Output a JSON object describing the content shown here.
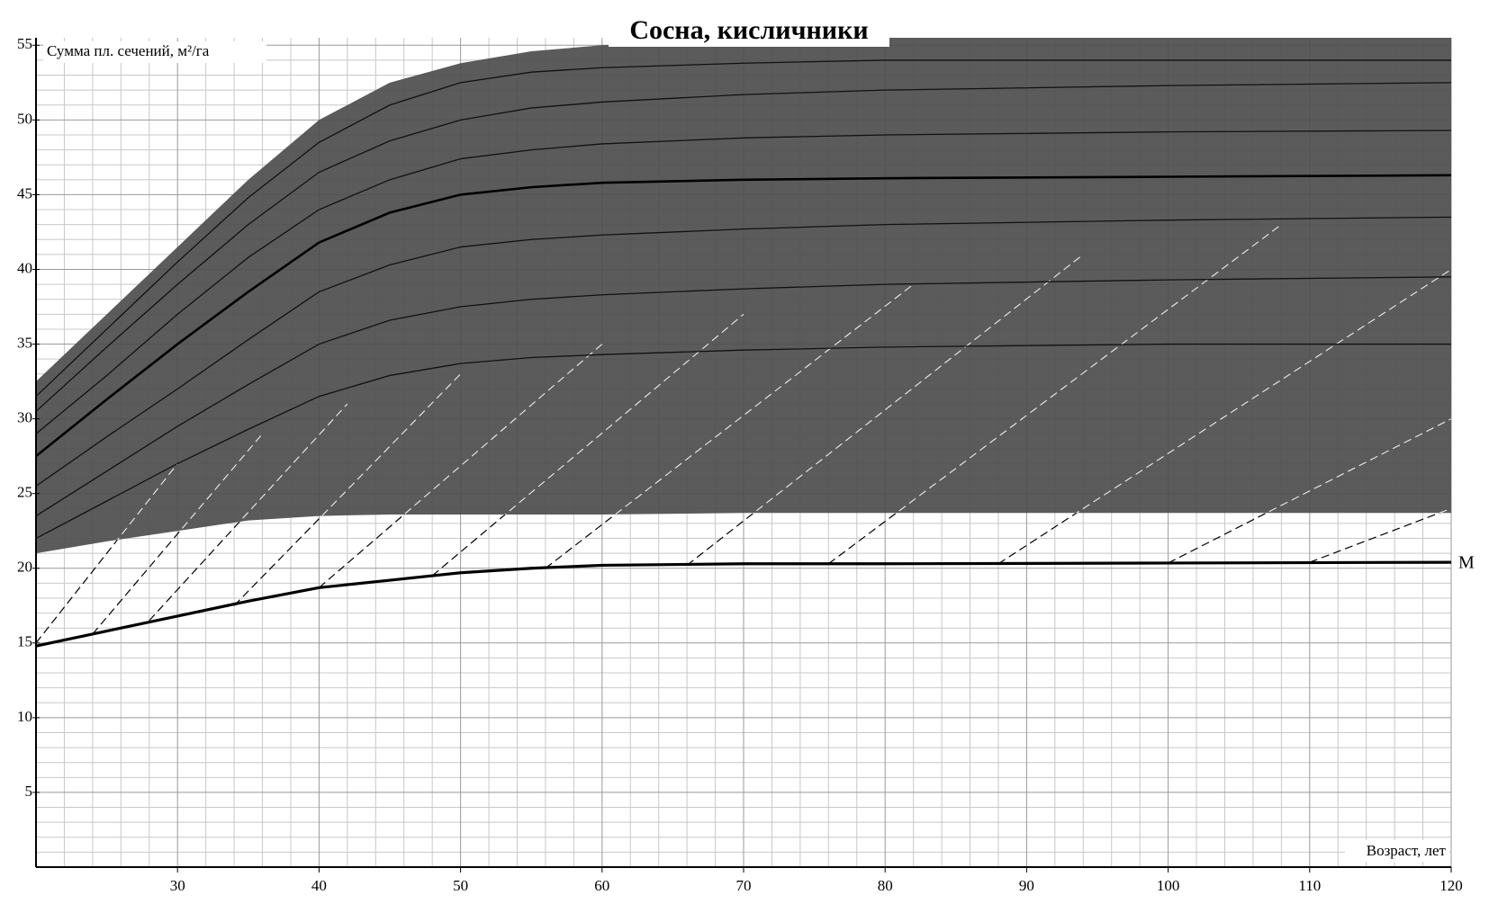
{
  "chart_data": {
    "type": "line",
    "title": "Сосна, кисличники",
    "ylabel": "Сумма пл. сечений, м²/га",
    "xlabel": "Возраст, лет",
    "xlim": [
      20,
      120
    ],
    "ylim": [
      0,
      55.5
    ],
    "xticks": [
      30,
      40,
      50,
      60,
      70,
      80,
      90,
      100,
      110,
      120
    ],
    "yticks": [
      5,
      10,
      15,
      20,
      25,
      30,
      35,
      40,
      45,
      50,
      55
    ],
    "xminorticks": [
      22,
      24,
      26,
      28,
      32,
      34,
      36,
      38,
      42,
      44,
      46,
      48,
      52,
      54,
      56,
      58,
      62,
      64,
      66,
      68,
      72,
      74,
      76,
      78,
      82,
      84,
      86,
      88,
      92,
      94,
      96,
      98,
      102,
      104,
      106,
      108,
      112,
      114,
      116,
      118
    ],
    "yminorticks": [
      1,
      2,
      3,
      4,
      6,
      7,
      8,
      9,
      11,
      12,
      13,
      14,
      16,
      17,
      18,
      19,
      21,
      22,
      23,
      24,
      26,
      27,
      28,
      29,
      31,
      32,
      33,
      34,
      36,
      37,
      38,
      39,
      41,
      42,
      43,
      44,
      46,
      47,
      48,
      49,
      51,
      52,
      53,
      54
    ],
    "grid": true,
    "x": [
      20,
      25,
      30,
      35,
      40,
      45,
      50,
      55,
      60,
      70,
      80,
      100,
      120
    ],
    "area": {
      "color": "#4d4d4d",
      "upper": [
        32.5,
        37,
        41.5,
        46,
        50,
        52.5,
        53.8,
        54.6,
        55,
        55.3,
        55.5,
        55.5,
        55.5
      ],
      "lower": [
        21,
        21.8,
        22.5,
        23.2,
        23.5,
        23.6,
        23.6,
        23.6,
        23.6,
        23.7,
        23.7,
        23.7,
        23.7
      ]
    },
    "series": [
      {
        "color": "#111111",
        "width": 1.3,
        "values": [
          31.5,
          36,
          40.5,
          44.8,
          48.5,
          51,
          52.5,
          53.2,
          53.5,
          53.8,
          54,
          54,
          54
        ]
      },
      {
        "color": "#111111",
        "width": 1.3,
        "values": [
          30.5,
          34.8,
          39,
          43,
          46.5,
          48.6,
          50,
          50.8,
          51.2,
          51.7,
          52,
          52.3,
          52.5
        ]
      },
      {
        "color": "#111111",
        "width": 1.3,
        "values": [
          29,
          32.9,
          37,
          40.8,
          44,
          46,
          47.4,
          48,
          48.4,
          48.8,
          49,
          49.2,
          49.3
        ]
      },
      {
        "color": "#000000",
        "width": 2.6,
        "values": [
          27.5,
          31.3,
          35,
          38.5,
          41.8,
          43.8,
          45,
          45.5,
          45.8,
          46,
          46.1,
          46.2,
          46.3
        ]
      },
      {
        "color": "#111111",
        "width": 1.3,
        "values": [
          25.5,
          28.8,
          32,
          35.3,
          38.5,
          40.3,
          41.5,
          42,
          42.3,
          42.7,
          43,
          43.3,
          43.5
        ]
      },
      {
        "color": "#111111",
        "width": 1.3,
        "values": [
          23.5,
          26.5,
          29.5,
          32.3,
          35,
          36.6,
          37.5,
          38,
          38.3,
          38.7,
          39,
          39.3,
          39.5
        ]
      },
      {
        "color": "#111111",
        "width": 1.3,
        "values": [
          22,
          24.5,
          27,
          29.3,
          31.5,
          32.9,
          33.7,
          34.1,
          34.3,
          34.6,
          34.8,
          35,
          35
        ]
      },
      {
        "name": "М",
        "color": "#000000",
        "width": 3.2,
        "values": [
          14.8,
          15.8,
          16.8,
          17.8,
          18.7,
          19.2,
          19.7,
          20,
          20.2,
          20.3,
          20.3,
          20.35,
          20.4
        ]
      }
    ],
    "dashed_lines": [
      {
        "x": [
          20,
          30
        ],
        "values": [
          15,
          27
        ]
      },
      {
        "x": [
          24,
          36
        ],
        "values": [
          15.6,
          29
        ]
      },
      {
        "x": [
          28,
          42
        ],
        "values": [
          16.5,
          31
        ]
      },
      {
        "x": [
          34,
          50
        ],
        "values": [
          17.5,
          33
        ]
      },
      {
        "x": [
          40,
          60
        ],
        "values": [
          18.7,
          35
        ]
      },
      {
        "x": [
          48,
          70
        ],
        "values": [
          19.5,
          37
        ]
      },
      {
        "x": [
          56,
          82
        ],
        "values": [
          20,
          39
        ]
      },
      {
        "x": [
          66,
          94
        ],
        "values": [
          20.2,
          41
        ]
      },
      {
        "x": [
          76,
          108
        ],
        "values": [
          20.3,
          43
        ]
      },
      {
        "x": [
          88,
          120
        ],
        "values": [
          20.3,
          40
        ]
      },
      {
        "x": [
          100,
          120
        ],
        "values": [
          20.35,
          30
        ]
      },
      {
        "x": [
          110,
          120
        ],
        "values": [
          20.4,
          24
        ]
      }
    ]
  }
}
